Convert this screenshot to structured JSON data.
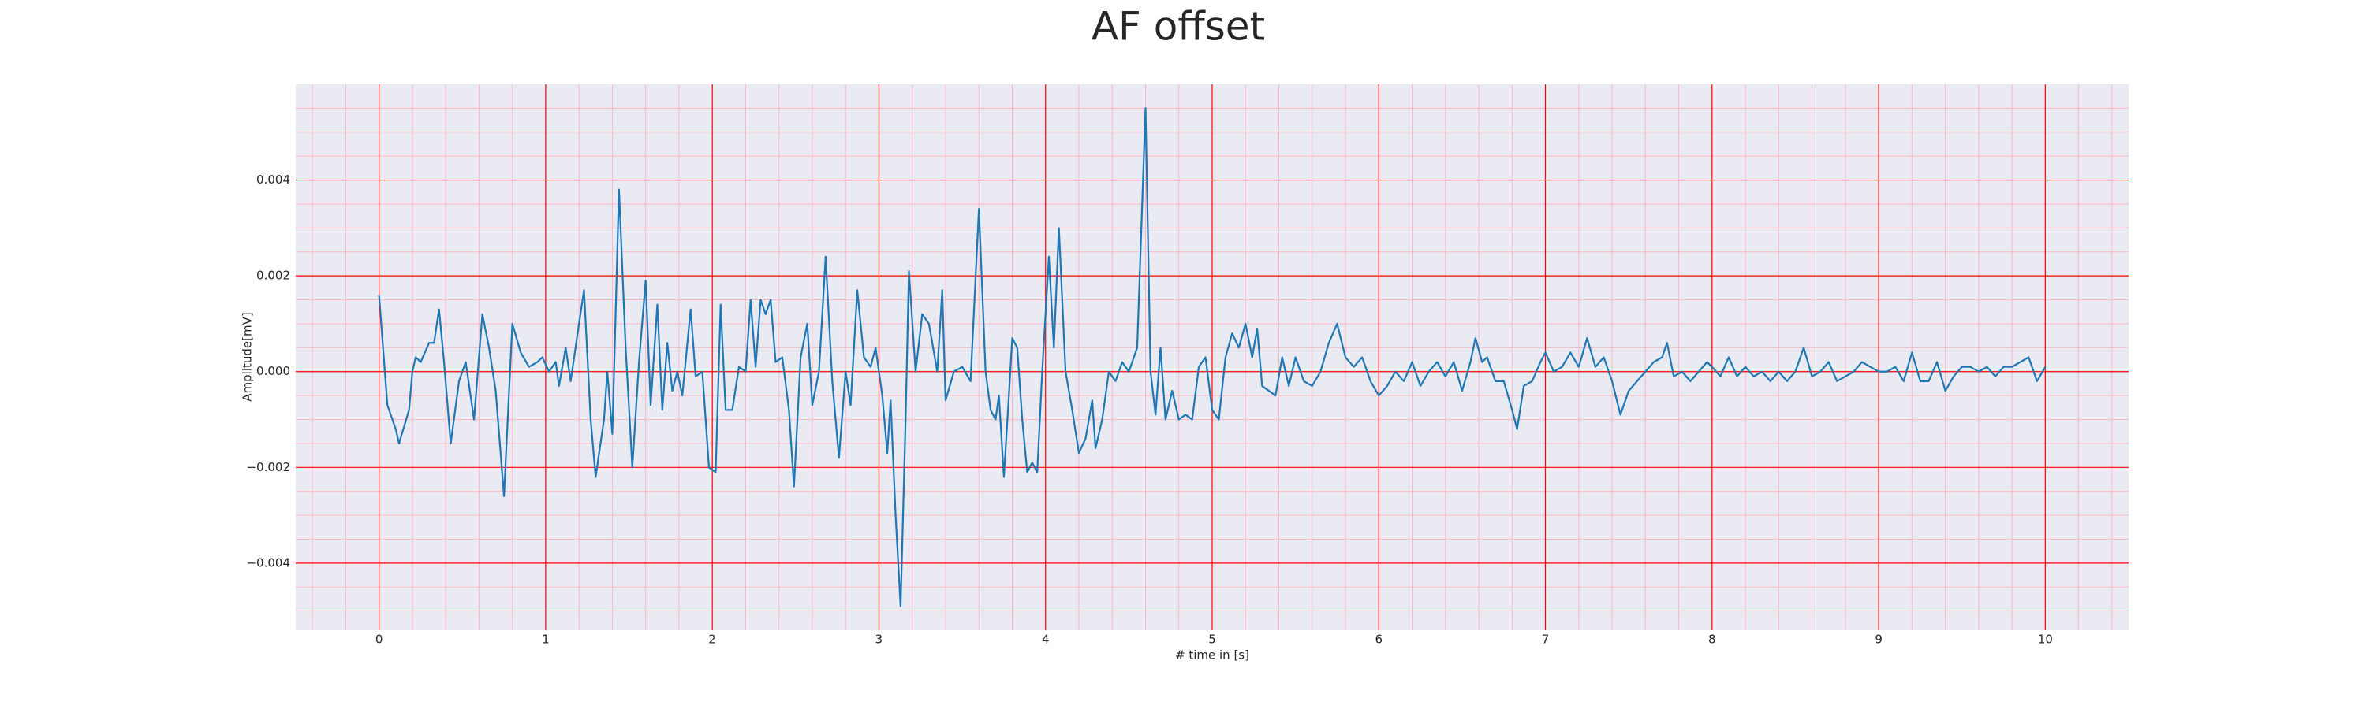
{
  "chart_data": {
    "type": "line",
    "title": "AF offset",
    "x_label": "# time in [s]",
    "y_label": "Amplitude[mV]",
    "xlim": [
      -0.5,
      10.5
    ],
    "ylim": [
      -0.0054,
      0.006
    ],
    "xticks": [
      0,
      1,
      2,
      3,
      4,
      5,
      6,
      7,
      8,
      9,
      10
    ],
    "yticks": [
      {
        "value": -0.004,
        "label": "−0.004"
      },
      {
        "value": -0.002,
        "label": "−0.002"
      },
      {
        "value": 0,
        "label": "0.000"
      },
      0.002,
      0.004
    ],
    "xminor": [
      -0.4,
      -0.2,
      0.2,
      0.4,
      0.6,
      0.8,
      1.2,
      1.4,
      1.6,
      1.8,
      2.2,
      2.4,
      2.6,
      2.8,
      3.2,
      3.4,
      3.6,
      3.8,
      4.2,
      4.4,
      4.6,
      4.8,
      5.2,
      5.4,
      5.6,
      5.8,
      6.2,
      6.4,
      6.6,
      6.8,
      7.2,
      7.4,
      7.6,
      7.8,
      8.2,
      8.4,
      8.6,
      8.8,
      9.2,
      9.4,
      9.6,
      9.8,
      10.2,
      10.4
    ],
    "yminor": [
      -0.005,
      -0.0045,
      -0.0035,
      -0.003,
      -0.0025,
      -0.0015,
      -0.001,
      -0.0005,
      0.0005,
      0.001,
      0.0015,
      0.0025,
      0.003,
      0.0035,
      0.0045,
      0.005,
      0.0055
    ],
    "grid": true,
    "grid_color": "#ff0000",
    "minor_grid_color": "#ffb6c1",
    "background": "#eaeaf2",
    "series": [
      {
        "name": "AF offset",
        "color": "#1f77b4",
        "x": [
          0,
          0.05,
          0.1,
          0.12,
          0.18,
          0.2,
          0.22,
          0.25,
          0.3,
          0.33,
          0.36,
          0.39,
          0.43,
          0.48,
          0.52,
          0.57,
          0.62,
          0.66,
          0.7,
          0.75,
          0.8,
          0.85,
          0.9,
          0.95,
          0.98,
          1.02,
          1.06,
          1.08,
          1.12,
          1.15,
          1.2,
          1.23,
          1.27,
          1.3,
          1.35,
          1.37,
          1.4,
          1.44,
          1.48,
          1.52,
          1.56,
          1.6,
          1.63,
          1.67,
          1.7,
          1.73,
          1.76,
          1.79,
          1.82,
          1.87,
          1.9,
          1.94,
          1.98,
          2.02,
          2.05,
          2.08,
          2.12,
          2.16,
          2.2,
          2.23,
          2.26,
          2.29,
          2.32,
          2.35,
          2.38,
          2.42,
          2.46,
          2.49,
          2.53,
          2.57,
          2.6,
          2.64,
          2.68,
          2.72,
          2.76,
          2.8,
          2.83,
          2.87,
          2.91,
          2.95,
          2.98,
          3.02,
          3.05,
          3.07,
          3.1,
          3.13,
          3.16,
          3.18,
          3.22,
          3.26,
          3.3,
          3.35,
          3.38,
          3.4,
          3.45,
          3.5,
          3.55,
          3.6,
          3.64,
          3.67,
          3.7,
          3.72,
          3.75,
          3.78,
          3.8,
          3.83,
          3.86,
          3.89,
          3.92,
          3.95,
          3.98,
          4.02,
          4.05,
          4.08,
          4.12,
          4.16,
          4.2,
          4.24,
          4.28,
          4.3,
          4.34,
          4.38,
          4.42,
          4.46,
          4.5,
          4.55,
          4.6,
          4.63,
          4.66,
          4.69,
          4.72,
          4.76,
          4.8,
          4.84,
          4.88,
          4.92,
          4.96,
          5.0,
          5.04,
          5.08,
          5.12,
          5.16,
          5.2,
          5.24,
          5.27,
          5.3,
          5.34,
          5.38,
          5.42,
          5.46,
          5.5,
          5.55,
          5.6,
          5.65,
          5.7,
          5.75,
          5.8,
          5.85,
          5.9,
          5.95,
          6.0,
          6.05,
          6.1,
          6.15,
          6.2,
          6.25,
          6.3,
          6.35,
          6.4,
          6.45,
          6.5,
          6.55,
          6.58,
          6.62,
          6.65,
          6.7,
          6.75,
          6.8,
          6.83,
          6.87,
          6.92,
          6.97,
          7.0,
          7.05,
          7.1,
          7.15,
          7.2,
          7.25,
          7.3,
          7.35,
          7.4,
          7.45,
          7.5,
          7.55,
          7.6,
          7.65,
          7.7,
          7.73,
          7.77,
          7.82,
          7.87,
          7.92,
          7.97,
          8.0,
          8.05,
          8.1,
          8.15,
          8.2,
          8.25,
          8.3,
          8.35,
          8.4,
          8.45,
          8.5,
          8.55,
          8.6,
          8.65,
          8.7,
          8.75,
          8.8,
          8.85,
          8.9,
          8.95,
          9.0,
          9.05,
          9.1,
          9.15,
          9.2,
          9.25,
          9.3,
          9.35,
          9.4,
          9.45,
          9.5,
          9.55,
          9.6,
          9.65,
          9.7,
          9.75,
          9.8,
          9.85,
          9.9,
          9.95,
          10.0
        ],
        "values": [
          0.0016,
          -0.0007,
          -0.0012,
          -0.0015,
          -0.0008,
          0.0,
          0.0003,
          0.0002,
          0.0006,
          0.0006,
          0.0013,
          0.0002,
          -0.0015,
          -0.0002,
          0.0002,
          -0.001,
          0.0012,
          0.0005,
          -0.0004,
          -0.0026,
          0.001,
          0.0004,
          0.0001,
          0.0002,
          0.0003,
          0.0,
          0.0002,
          -0.0003,
          0.0005,
          -0.0002,
          0.001,
          0.0017,
          -0.001,
          -0.0022,
          -0.001,
          0.0,
          -0.0013,
          0.0038,
          0.0005,
          -0.002,
          0.0002,
          0.0019,
          -0.0007,
          0.0014,
          -0.0008,
          0.0006,
          -0.0004,
          0.0,
          -0.0005,
          0.0013,
          -0.0001,
          0.0,
          -0.002,
          -0.0021,
          0.0014,
          -0.0008,
          -0.0008,
          0.0001,
          0.0,
          0.0015,
          0.0001,
          0.0015,
          0.0012,
          0.0015,
          0.0002,
          0.0003,
          -0.0008,
          -0.0024,
          0.0003,
          0.001,
          -0.0007,
          0.0,
          0.0024,
          -0.0002,
          -0.0018,
          0.0,
          -0.0007,
          0.0017,
          0.0003,
          0.0001,
          0.0005,
          -0.0005,
          -0.0017,
          -0.0006,
          -0.003,
          -0.0049,
          -0.001,
          0.0021,
          0.0,
          0.0012,
          0.001,
          0.0,
          0.0017,
          -0.0006,
          0.0,
          0.0001,
          -0.0002,
          0.0034,
          0.0,
          -0.0008,
          -0.001,
          -0.0005,
          -0.0022,
          -0.0005,
          0.0007,
          0.0005,
          -0.001,
          -0.0021,
          -0.0019,
          -0.0021,
          0.0,
          0.0024,
          0.0005,
          0.003,
          0.0,
          -0.0008,
          -0.0017,
          -0.0014,
          -0.0006,
          -0.0016,
          -0.001,
          0.0,
          -0.0002,
          0.0002,
          0.0,
          0.0005,
          0.0055,
          0.0,
          -0.0009,
          0.0005,
          -0.001,
          -0.0004,
          -0.001,
          -0.0009,
          -0.001,
          0.0001,
          0.0003,
          -0.0008,
          -0.001,
          0.0003,
          0.0008,
          0.0005,
          0.001,
          0.0003,
          0.0009,
          -0.0003,
          -0.0004,
          -0.0005,
          0.0003,
          -0.0003,
          0.0003,
          -0.0002,
          -0.0003,
          0.0,
          0.0006,
          0.001,
          0.0003,
          0.0001,
          0.0003,
          -0.0002,
          -0.0005,
          -0.0003,
          0.0,
          -0.0002,
          0.0002,
          -0.0003,
          0.0,
          0.0002,
          -0.0001,
          0.0002,
          -0.0004,
          0.0002,
          0.0007,
          0.0002,
          0.0003,
          -0.0002,
          -0.0002,
          -0.0008,
          -0.0012,
          -0.0003,
          -0.0002,
          0.0002,
          0.0004,
          0.0,
          0.0001,
          0.0004,
          0.0001,
          0.0007,
          0.0001,
          0.0003,
          -0.0002,
          -0.0009,
          -0.0004,
          -0.0002,
          0.0,
          0.0002,
          0.0003,
          0.0006,
          -0.0001,
          0.0,
          -0.0002,
          0.0,
          0.0002,
          0.0001,
          -0.0001,
          0.0003,
          -0.0001,
          0.0001,
          -0.0001,
          0.0,
          -0.0002,
          0.0,
          -0.0002,
          0.0,
          0.0005,
          -0.0001,
          0.0,
          0.0002,
          -0.0002,
          -0.0001,
          0.0,
          0.0002,
          0.0001,
          0.0,
          0.0,
          0.0001,
          -0.0002,
          0.0004,
          -0.0002,
          -0.0002,
          0.0002,
          -0.0004,
          -0.0001,
          0.0001,
          0.0001,
          0.0,
          0.0001,
          -0.0001,
          0.0001,
          0.0001,
          0.0002,
          0.0003,
          -0.0002,
          0.0001
        ]
      }
    ]
  }
}
